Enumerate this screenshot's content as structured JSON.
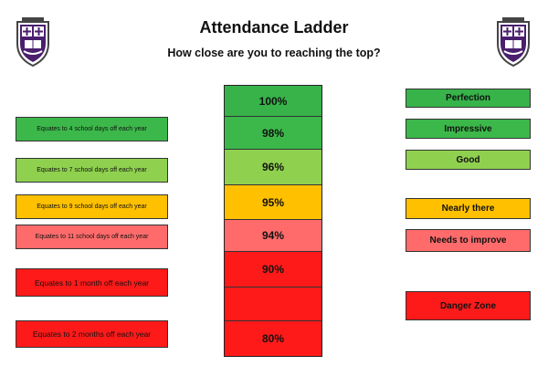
{
  "header": {
    "title": "Attendance Ladder",
    "subtitle": "How close are you to reaching the top?"
  },
  "crests": [
    "school-crest",
    "school-crest"
  ],
  "ladder": [
    {
      "label": "100%",
      "color": "#37b34a"
    },
    {
      "label": "98%",
      "color": "#3cb84a"
    },
    {
      "label": "96%",
      "color": "#8fd14f"
    },
    {
      "label": "95%",
      "color": "#ffc000"
    },
    {
      "label": "94%",
      "color": "#ff6b6b"
    },
    {
      "label": "90%",
      "color": "#ff1a1a"
    },
    {
      "label": "",
      "color": "#ff1a1a"
    },
    {
      "label": "80%",
      "color": "#ff1a1a"
    }
  ],
  "days_off": [
    {
      "text": "Equates to 4 school days off each year",
      "color": "#3cb84a"
    },
    {
      "text": "Equates to 7 school days off each year",
      "color": "#8fd14f"
    },
    {
      "text": "Equates to 9 school days off each year",
      "color": "#ffc000"
    },
    {
      "text": "Equates to 11 school days off each year",
      "color": "#ff6b6b"
    },
    {
      "text": "Equates to 1 month off each year",
      "color": "#ff1a1a"
    },
    {
      "text": "Equates to 2 months off each year",
      "color": "#ff1a1a"
    }
  ],
  "ratings": [
    {
      "text": "Perfection",
      "color": "#37b34a"
    },
    {
      "text": "Impressive",
      "color": "#3cb84a"
    },
    {
      "text": "Good",
      "color": "#8fd14f"
    },
    {
      "text": "Nearly there",
      "color": "#ffc000"
    },
    {
      "text": "Needs to improve",
      "color": "#ff6b6b"
    },
    {
      "text": "Danger Zone",
      "color": "#ff1a1a"
    }
  ]
}
